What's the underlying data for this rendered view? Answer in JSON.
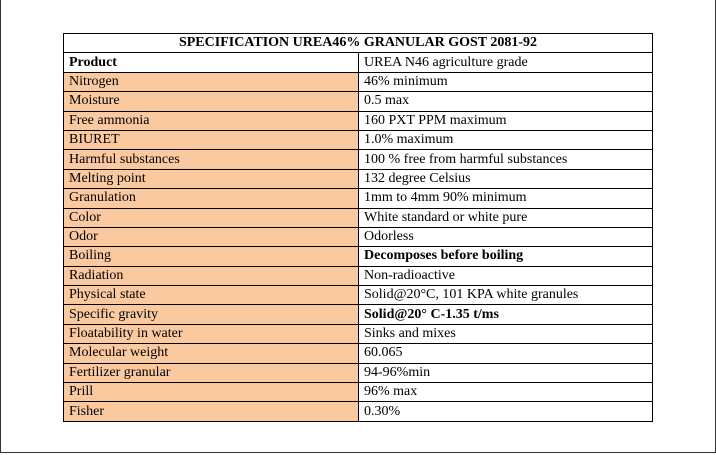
{
  "table": {
    "title": "SPECIFICATION UREA46% GRANULAR GOST 2081-92",
    "header": [
      "Product",
      "UREA N46 agriculture grade"
    ],
    "rows": [
      [
        "Nitrogen",
        "46% minimum"
      ],
      [
        "Moisture",
        "0.5 max"
      ],
      [
        "Free ammonia",
        "160 PXT PPM maximum"
      ],
      [
        "BIURET",
        "1.0% maximum"
      ],
      [
        "Harmful substances",
        "100 % free from harmful substances"
      ],
      [
        "Melting point",
        "132 degree Celsius"
      ],
      [
        "Granulation",
        "1mm to 4mm 90% minimum"
      ],
      [
        "Color",
        "White standard or white pure"
      ],
      [
        "Odor",
        "Odorless"
      ],
      [
        "Boiling",
        "Decomposes before boiling"
      ],
      [
        "Radiation",
        "Non-radioactive"
      ],
      [
        "Physical state",
        "Solid@20°C, 101 KPA white granules"
      ],
      [
        "Specific gravity",
        "Solid@20° C-1.35 t/ms"
      ],
      [
        "Floatability in water",
        "Sinks and mixes"
      ],
      [
        "Molecular weight",
        "60.065"
      ],
      [
        "Fertilizer granular",
        "94-96%min"
      ],
      [
        "Prill",
        "96% max"
      ],
      [
        "Fisher",
        "0.30%"
      ]
    ]
  }
}
